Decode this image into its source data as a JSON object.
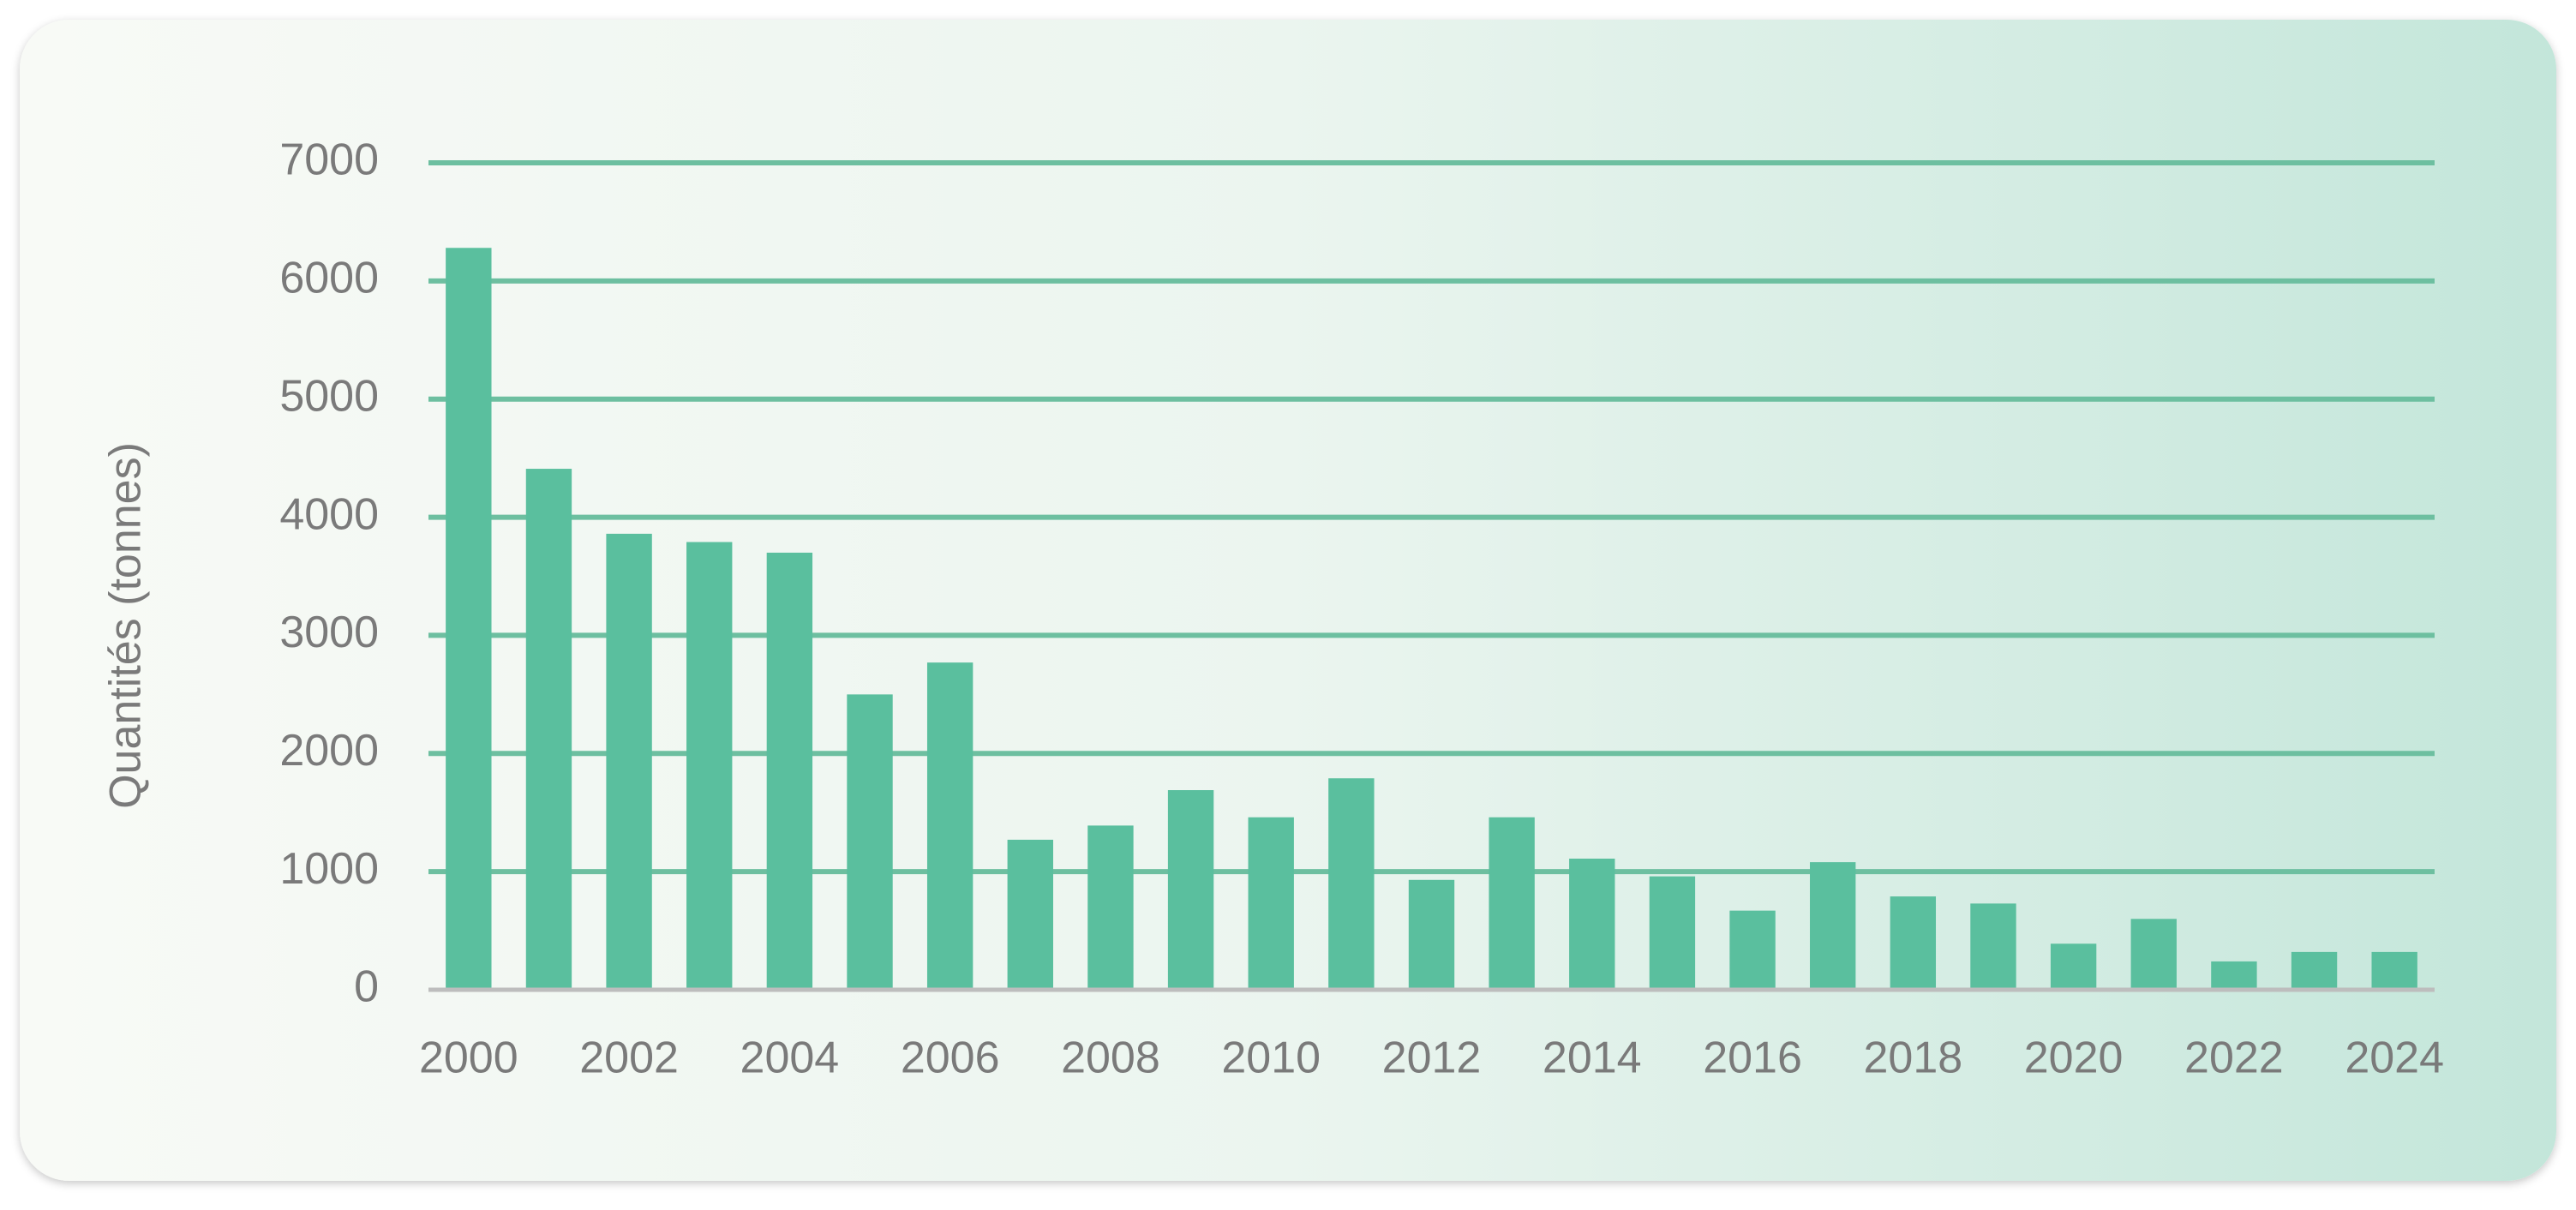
{
  "chart_data": {
    "type": "bar",
    "ylabel": "Quantités (tonnes)",
    "categories": [
      "2000",
      null,
      "2002",
      null,
      "2004",
      null,
      "2006",
      null,
      "2008",
      null,
      "2010",
      null,
      "2012",
      null,
      "2014",
      null,
      "2016",
      null,
      "2018",
      null,
      "2020",
      null,
      "2022",
      null,
      "2024"
    ],
    "values": [
      6280,
      4410,
      3860,
      3790,
      3700,
      2500,
      2770,
      1270,
      1390,
      1690,
      1460,
      1790,
      930,
      1460,
      1110,
      960,
      670,
      1080,
      790,
      730,
      390,
      600,
      240,
      320,
      320
    ],
    "color": "#5abf9e",
    "grid_color": "#6dbfa0",
    "ylim": [
      0,
      7000
    ],
    "yticks": [
      0,
      1000,
      2000,
      3000,
      4000,
      5000,
      6000,
      7000
    ],
    "grid": true
  }
}
